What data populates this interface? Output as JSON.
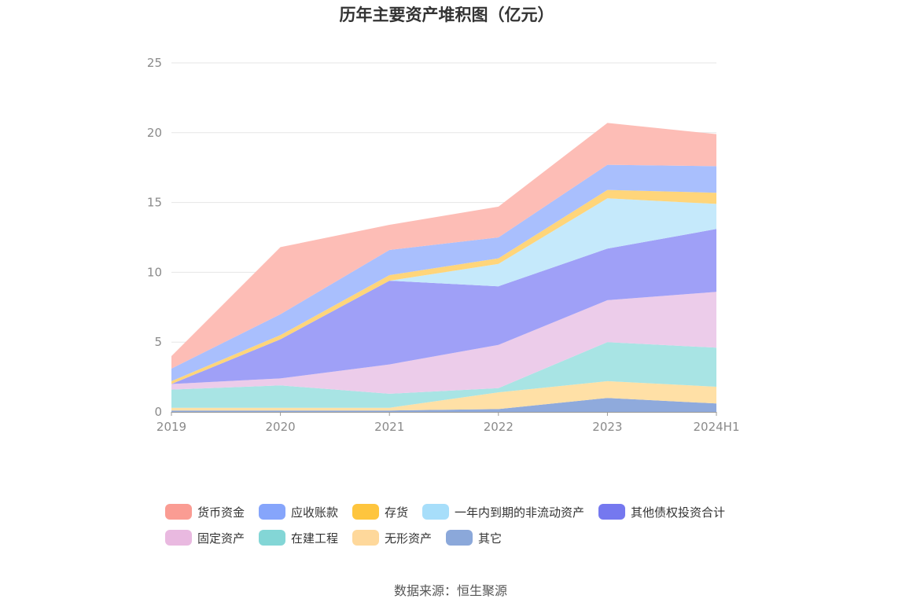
{
  "chart_data": {
    "type": "area",
    "stacked": true,
    "title": "历年主要资产堆积图（亿元）",
    "categories": [
      "2019",
      "2020",
      "2021",
      "2022",
      "2023",
      "2024H1"
    ],
    "ylim": [
      0,
      25
    ],
    "yticks": [
      "0",
      "5",
      "10",
      "15",
      "20",
      "25"
    ],
    "grid": true,
    "legend_position": "bottom",
    "series": [
      {
        "name": "其它",
        "color": "#8faadc",
        "values": [
          0.1,
          0.1,
          0.1,
          0.2,
          1.0,
          0.6
        ]
      },
      {
        "name": "无形资产",
        "color": "#ffe0a6",
        "values": [
          0.2,
          0.2,
          0.2,
          1.2,
          1.2,
          1.2
        ]
      },
      {
        "name": "在建工程",
        "color": "#a8e4e4",
        "values": [
          1.3,
          1.6,
          1.0,
          0.3,
          2.8,
          2.8
        ]
      },
      {
        "name": "固定资产",
        "color": "#ecccea",
        "values": [
          0.4,
          0.5,
          2.1,
          3.1,
          3.0,
          4.0
        ]
      },
      {
        "name": "其他债权投资合计",
        "color": "#9fa0f7",
        "values": [
          0.0,
          2.8,
          6.0,
          4.2,
          3.7,
          4.5
        ]
      },
      {
        "name": "一年内到期的非流动资产",
        "color": "#c5e9fb",
        "values": [
          0.0,
          0.0,
          0.0,
          1.6,
          3.6,
          1.8
        ]
      },
      {
        "name": "存货",
        "color": "#ffd57a",
        "values": [
          0.2,
          0.3,
          0.4,
          0.4,
          0.6,
          0.8
        ]
      },
      {
        "name": "应收账款",
        "color": "#a9bffd",
        "values": [
          0.9,
          1.5,
          1.8,
          1.5,
          1.8,
          1.9
        ]
      },
      {
        "name": "货币资金",
        "color": "#fdbdb6",
        "values": [
          0.9,
          4.8,
          1.8,
          2.2,
          3.0,
          2.3
        ]
      }
    ]
  },
  "legend": [
    {
      "label": "货币资金",
      "color": "#fa9c93"
    },
    {
      "label": "应收账款",
      "color": "#86a5fb"
    },
    {
      "label": "存货",
      "color": "#fec53e"
    },
    {
      "label": "一年内到期的非流动资产",
      "color": "#a7defa"
    },
    {
      "label": "其他债权投资合计",
      "color": "#7578ef"
    },
    {
      "label": "固定资产",
      "color": "#e9b9e0"
    },
    {
      "label": "在建工程",
      "color": "#83d6d6"
    },
    {
      "label": "无形资产",
      "color": "#fed89b"
    },
    {
      "label": "其它",
      "color": "#8ba8da"
    }
  ],
  "source": "数据来源：恒生聚源"
}
